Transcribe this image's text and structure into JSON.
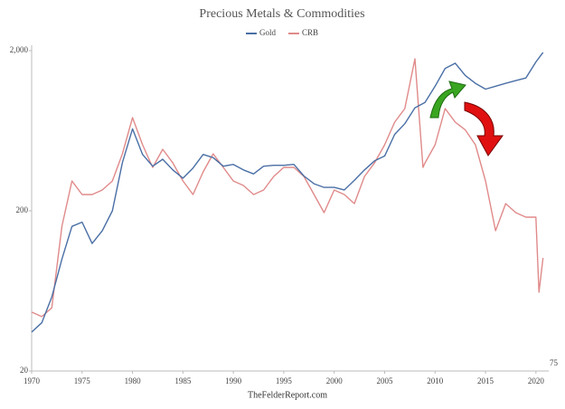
{
  "chart_data": {
    "type": "line",
    "title": "Precious Metals & Commodities",
    "annotations": [
      "TheFelderReport.com"
    ],
    "log_scale": true,
    "legend": "top",
    "xlim": [
      1970,
      2021
    ],
    "xticks": [
      1970,
      1975,
      1980,
      1985,
      1990,
      1995,
      2000,
      2005,
      2010,
      2015,
      2020
    ],
    "ylim": [
      20,
      2000
    ],
    "yticks": [
      20,
      200,
      {
        "value": 2000,
        "label": "2,000"
      }
    ],
    "y2lim": [
      75,
      7500
    ],
    "y2ticks": [
      75
    ],
    "series": [
      {
        "name": "Gold",
        "color": "#4a6fa5",
        "x": [
          1970,
          1971,
          1972,
          1973,
          1974,
          1975,
          1976,
          1977,
          1978,
          1979,
          1980,
          1981,
          1982,
          1983,
          1984,
          1985,
          1986,
          1987,
          1988,
          1989,
          1990,
          1991,
          1992,
          1993,
          1994,
          1995,
          1996,
          1997,
          1998,
          1999,
          2000,
          2001,
          2002,
          2003,
          2004,
          2005,
          2006,
          2007,
          2008,
          2009,
          2010,
          2011,
          2012,
          2013,
          2014,
          2015,
          2016,
          2017,
          2018,
          2019,
          2020,
          2020.7
        ],
        "values": [
          35,
          40,
          58,
          100,
          160,
          170,
          125,
          150,
          200,
          400,
          650,
          450,
          380,
          420,
          360,
          320,
          370,
          450,
          430,
          380,
          390,
          360,
          340,
          380,
          385,
          385,
          390,
          330,
          295,
          280,
          280,
          270,
          310,
          360,
          410,
          440,
          600,
          700,
          880,
          950,
          1200,
          1550,
          1670,
          1400,
          1250,
          1150,
          1200,
          1250,
          1300,
          1350,
          1700,
          1950
        ]
      },
      {
        "name": "CRB",
        "color": "#e08a8a",
        "axis": "y2",
        "x": [
          1970,
          1971,
          1972,
          1973,
          1974,
          1975,
          1976,
          1977,
          1978,
          1979,
          1980,
          1981,
          1982,
          1983,
          1984,
          1985,
          1986,
          1987,
          1988,
          1989,
          1990,
          1991,
          1992,
          1993,
          1994,
          1995,
          1996,
          1997,
          1998,
          1999,
          2000,
          2001,
          2002,
          2003,
          2004,
          2005,
          2006,
          2007,
          2008,
          2008.8,
          2009,
          2010,
          2011,
          2012,
          2013,
          2014,
          2015,
          2016,
          2017,
          2018,
          2019,
          2020,
          2020.3,
          2020.7
        ],
        "values": [
          175,
          164,
          186,
          601,
          1152,
          948,
          948,
          1012,
          1152,
          1702,
          2865,
          1938,
          1400,
          1816,
          1493,
          1152,
          948,
          1312,
          1702,
          1400,
          1152,
          1079,
          948,
          1012,
          1230,
          1400,
          1400,
          1230,
          948,
          731,
          1012,
          948,
          832,
          1230,
          1493,
          1938,
          2685,
          3260,
          6670,
          1400,
          1493,
          1938,
          3260,
          2685,
          2400,
          1938,
          1152,
          563,
          832,
          731,
          685,
          685,
          233,
          381
        ]
      }
    ]
  }
}
